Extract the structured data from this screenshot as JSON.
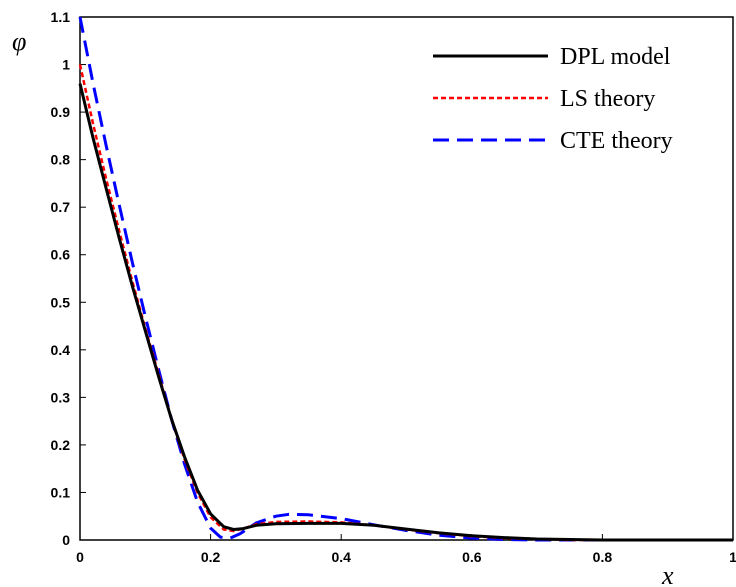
{
  "chart_data": {
    "type": "line",
    "xlabel": "x",
    "ylabel": "φ",
    "xlim": [
      0,
      1
    ],
    "ylim": [
      0,
      1.1
    ],
    "x_ticks": [
      "0",
      "0.2",
      "0.4",
      "0.6",
      "0.8",
      "1"
    ],
    "y_ticks": [
      "0",
      "0.1",
      "0.2",
      "0.3",
      "0.4",
      "0.5",
      "0.6",
      "0.7",
      "0.8",
      "0.9",
      "1",
      "1.1"
    ],
    "grid": false,
    "legend_position": "top-right",
    "series": [
      {
        "name": "DPL model",
        "color": "#000000",
        "dash": "solid",
        "points": [
          [
            0,
            0.96
          ],
          [
            0.02,
            0.845
          ],
          [
            0.04,
            0.74
          ],
          [
            0.06,
            0.635
          ],
          [
            0.08,
            0.535
          ],
          [
            0.1,
            0.44
          ],
          [
            0.12,
            0.345
          ],
          [
            0.14,
            0.255
          ],
          [
            0.16,
            0.175
          ],
          [
            0.18,
            0.105
          ],
          [
            0.2,
            0.055
          ],
          [
            0.22,
            0.028
          ],
          [
            0.235,
            0.022
          ],
          [
            0.25,
            0.024
          ],
          [
            0.27,
            0.031
          ],
          [
            0.3,
            0.034
          ],
          [
            0.35,
            0.035
          ],
          [
            0.4,
            0.035
          ],
          [
            0.45,
            0.031
          ],
          [
            0.5,
            0.023
          ],
          [
            0.55,
            0.015
          ],
          [
            0.6,
            0.009
          ],
          [
            0.65,
            0.005
          ],
          [
            0.7,
            0.002
          ],
          [
            0.75,
            0.001
          ],
          [
            0.8,
            0.0
          ],
          [
            0.9,
            0.0
          ],
          [
            1.0,
            0.0
          ]
        ]
      },
      {
        "name": "LS theory",
        "color": "#ff0000",
        "dash": "short-dash",
        "points": [
          [
            0,
            1.0
          ],
          [
            0.02,
            0.875
          ],
          [
            0.04,
            0.76
          ],
          [
            0.06,
            0.65
          ],
          [
            0.08,
            0.545
          ],
          [
            0.1,
            0.445
          ],
          [
            0.12,
            0.35
          ],
          [
            0.14,
            0.255
          ],
          [
            0.16,
            0.17
          ],
          [
            0.18,
            0.1
          ],
          [
            0.2,
            0.048
          ],
          [
            0.22,
            0.022
          ],
          [
            0.235,
            0.019
          ],
          [
            0.25,
            0.024
          ],
          [
            0.27,
            0.033
          ],
          [
            0.3,
            0.038
          ],
          [
            0.35,
            0.039
          ],
          [
            0.4,
            0.037
          ],
          [
            0.45,
            0.031
          ],
          [
            0.5,
            0.022
          ],
          [
            0.55,
            0.014
          ],
          [
            0.6,
            0.008
          ],
          [
            0.65,
            0.004
          ],
          [
            0.7,
            0.002
          ],
          [
            0.75,
            0.0
          ],
          [
            0.8,
            0.0
          ],
          [
            0.9,
            0.0
          ],
          [
            1.0,
            0.0
          ]
        ]
      },
      {
        "name": "CTE theory",
        "color": "#0000ff",
        "dash": "long-dash",
        "points": [
          [
            0,
            1.1
          ],
          [
            0.02,
            0.96
          ],
          [
            0.04,
            0.83
          ],
          [
            0.06,
            0.705
          ],
          [
            0.08,
            0.585
          ],
          [
            0.1,
            0.47
          ],
          [
            0.12,
            0.36
          ],
          [
            0.14,
            0.255
          ],
          [
            0.16,
            0.16
          ],
          [
            0.18,
            0.08
          ],
          [
            0.2,
            0.025
          ],
          [
            0.215,
            0.006
          ],
          [
            0.23,
            0.004
          ],
          [
            0.245,
            0.013
          ],
          [
            0.27,
            0.036
          ],
          [
            0.3,
            0.05
          ],
          [
            0.32,
            0.054
          ],
          [
            0.35,
            0.053
          ],
          [
            0.4,
            0.045
          ],
          [
            0.45,
            0.032
          ],
          [
            0.5,
            0.02
          ],
          [
            0.55,
            0.01
          ],
          [
            0.6,
            0.004
          ],
          [
            0.65,
            0.001
          ],
          [
            0.7,
            0.0
          ],
          [
            0.8,
            0.0
          ],
          [
            0.9,
            0.0
          ],
          [
            1.0,
            0.0
          ]
        ]
      }
    ]
  }
}
